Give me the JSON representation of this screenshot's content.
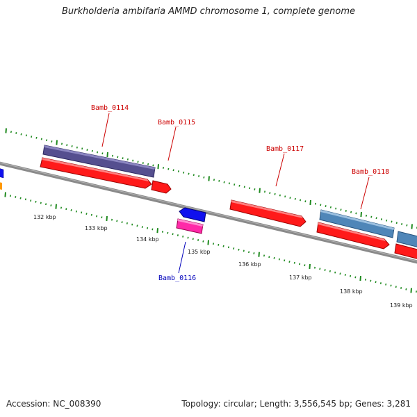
{
  "title": "Burkholderia ambifaria AMMD chromosome 1, complete genome",
  "footer": {
    "accession": "Accession: NC_008390",
    "stats": "Topology: circular; Length: 3,556,545 bp; Genes: 3,281"
  },
  "colors": {
    "backbone": "#7f7f7f",
    "tick": "#1f8a1f",
    "label_forward": "#cc0000",
    "label_reverse": "#0000bb",
    "cds_red": "#ff1a1a",
    "cds_purple": "#554f8f",
    "cds_steelblue": "#4f86b8",
    "cds_blue": "#1010ee",
    "cds_magenta": "#ff2aa8",
    "cds_orange": "#ff9900"
  },
  "scale_labels": [
    "132 kbp",
    "133 kbp",
    "134 kbp",
    "135 kbp",
    "136 kbp",
    "137 kbp",
    "138 kbp",
    "139 kbp"
  ],
  "gene_labels": [
    {
      "name": "Bamb_0114",
      "strand": "forward"
    },
    {
      "name": "Bamb_0115",
      "strand": "forward"
    },
    {
      "name": "Bamb_0117",
      "strand": "forward"
    },
    {
      "name": "Bamb_0118",
      "strand": "forward"
    },
    {
      "name": "Bamb_0116",
      "strand": "reverse"
    }
  ]
}
